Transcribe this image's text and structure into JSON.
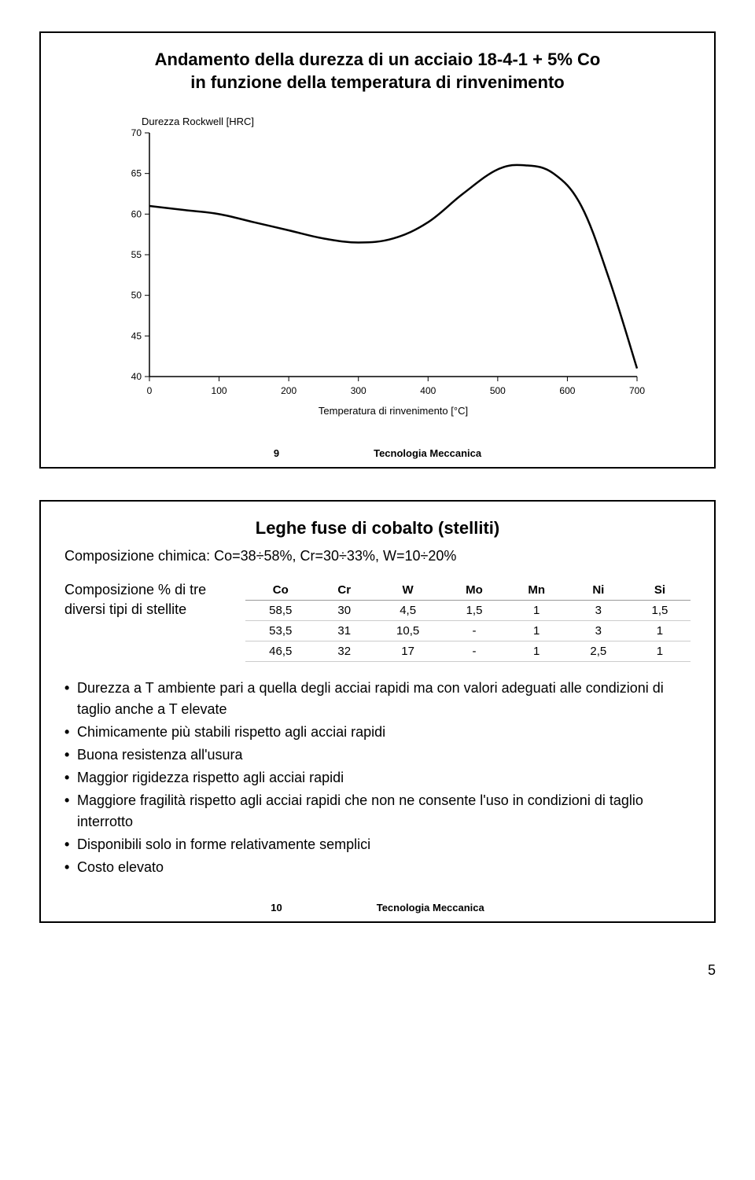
{
  "slide1": {
    "title_line1": "Andamento della durezza di un acciaio 18-4-1 + 5% Co",
    "title_line2": "in funzione della temperatura di rinvenimento",
    "chart": {
      "ylabel": "Durezza Rockwell [HRC]",
      "xlabel": "Temperatura di rinvenimento [°C]",
      "xlim": [
        0,
        700
      ],
      "ylim": [
        40,
        70
      ],
      "xticks": [
        0,
        100,
        200,
        300,
        400,
        500,
        600,
        700
      ],
      "yticks": [
        40,
        45,
        50,
        55,
        60,
        65,
        70
      ],
      "xtick_labels": [
        "0",
        "100",
        "200",
        "300",
        "400",
        "500",
        "600",
        "700"
      ],
      "ytick_labels": [
        "40",
        "45",
        "50",
        "55",
        "60",
        "65",
        "70"
      ],
      "line_color": "#000000",
      "line_width": 2.5,
      "tick_fontsize": 12,
      "label_fontsize": 13,
      "background_color": "#ffffff",
      "points": [
        [
          0,
          61
        ],
        [
          50,
          60.5
        ],
        [
          100,
          60
        ],
        [
          150,
          59
        ],
        [
          200,
          58
        ],
        [
          250,
          57
        ],
        [
          300,
          56.5
        ],
        [
          350,
          57
        ],
        [
          400,
          59
        ],
        [
          450,
          62.5
        ],
        [
          500,
          65.5
        ],
        [
          540,
          66
        ],
        [
          580,
          65
        ],
        [
          620,
          61
        ],
        [
          660,
          52
        ],
        [
          700,
          41
        ]
      ]
    },
    "slide_num": "9",
    "footer": "Tecnologia Meccanica"
  },
  "slide2": {
    "title": "Leghe fuse di cobalto (stelliti)",
    "subtitle": "Composizione chimica: Co=38÷58%, Cr=30÷33%, W=10÷20%",
    "comp_label_line1": "Composizione %",
    "comp_label_line2": "di tre diversi tipi di",
    "comp_label_line3": "stellite",
    "table": {
      "columns": [
        "Co",
        "Cr",
        "W",
        "Mo",
        "Mn",
        "Ni",
        "Si"
      ],
      "rows": [
        [
          "58,5",
          "30",
          "4,5",
          "1,5",
          "1",
          "3",
          "1,5"
        ],
        [
          "53,5",
          "31",
          "10,5",
          "-",
          "1",
          "3",
          "1"
        ],
        [
          "46,5",
          "32",
          "17",
          "-",
          "1",
          "2,5",
          "1"
        ]
      ]
    },
    "bullets": [
      "Durezza a T ambiente pari a quella degli acciai rapidi ma con valori adeguati alle condizioni di taglio anche a T elevate",
      "Chimicamente più stabili rispetto agli acciai rapidi",
      "Buona resistenza all'usura",
      "Maggior rigidezza  rispetto agli acciai rapidi",
      "Maggiore fragilità rispetto agli acciai rapidi che non ne consente l'uso in condizioni di taglio interrotto",
      "Disponibili solo in forme relativamente semplici",
      "Costo elevato"
    ],
    "slide_num": "10",
    "footer": "Tecnologia Meccanica"
  },
  "page_number": "5"
}
